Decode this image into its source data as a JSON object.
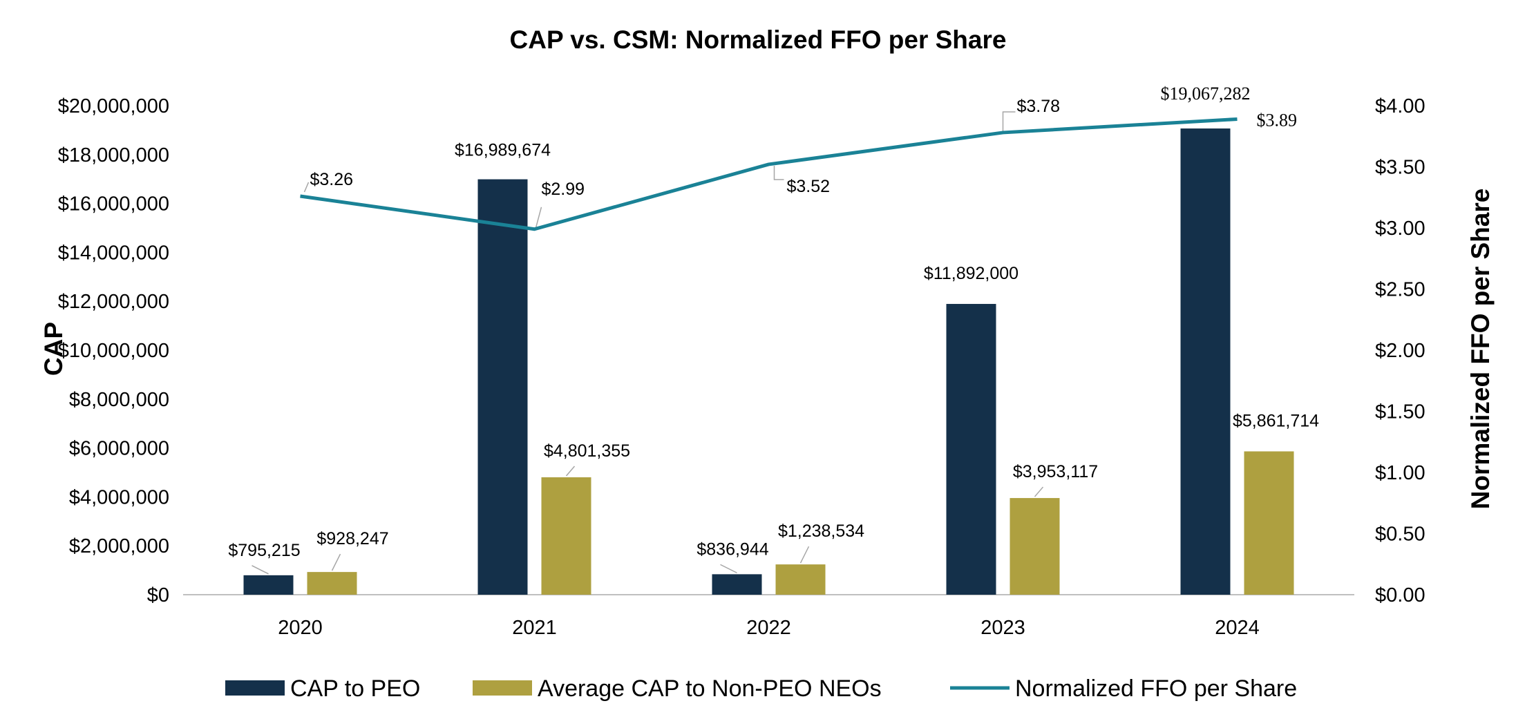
{
  "chart_data": {
    "type": "bar+line",
    "title": "CAP vs. CSM: Normalized FFO per Share",
    "categories": [
      "2020",
      "2021",
      "2022",
      "2023",
      "2024"
    ],
    "ylabel_left": "CAP",
    "ylabel_right": "Normalized FFO per Share",
    "ylim_left": [
      0,
      20000000
    ],
    "ylim_right": [
      0,
      4.0
    ],
    "yticks_left": [
      "$0",
      "$2,000,000",
      "$4,000,000",
      "$6,000,000",
      "$8,000,000",
      "$10,000,000",
      "$12,000,000",
      "$14,000,000",
      "$16,000,000",
      "$18,000,000",
      "$20,000,000"
    ],
    "yticks_right": [
      "$0.00",
      "$0.50",
      "$1.00",
      "$1.50",
      "$2.00",
      "$2.50",
      "$3.00",
      "$3.50",
      "$4.00"
    ],
    "grid": false,
    "legend_position": "bottom",
    "series": [
      {
        "name": "CAP to PEO",
        "type": "bar",
        "axis": "left",
        "color": "#14304a",
        "values": [
          795215,
          16989674,
          836944,
          11892000,
          19067282
        ],
        "labels": [
          "$795,215",
          "$16,989,674",
          "$836,944",
          "$11,892,000",
          "$19,067,282"
        ]
      },
      {
        "name": "Average CAP to Non-PEO NEOs",
        "type": "bar",
        "axis": "left",
        "color": "#aea040",
        "values": [
          928247,
          4801355,
          1238534,
          3953117,
          5861714
        ],
        "labels": [
          "$928,247",
          "$4,801,355",
          "$1,238,534",
          "$3,953,117",
          "$5,861,714"
        ]
      },
      {
        "name": "Normalized FFO per Share",
        "type": "line",
        "axis": "right",
        "color": "#1a8296",
        "values": [
          3.26,
          2.99,
          3.52,
          3.78,
          3.89
        ],
        "labels": [
          "$3.26",
          "$2.99",
          "$3.52",
          "$3.78",
          "$3.89"
        ]
      }
    ]
  }
}
